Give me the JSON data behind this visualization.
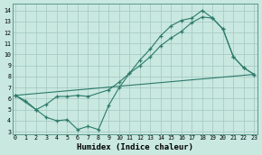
{
  "xlabel": "Humidex (Indice chaleur)",
  "bg_color": "#c8e8e0",
  "line_color": "#2d7a6a",
  "grid_color": "#a8ccc4",
  "spine_color": "#5a9a8a",
  "x_ticks": [
    0,
    1,
    2,
    3,
    4,
    5,
    6,
    7,
    8,
    9,
    10,
    11,
    12,
    13,
    14,
    15,
    16,
    17,
    18,
    19,
    20,
    21,
    22,
    23
  ],
  "y_ticks": [
    3,
    4,
    5,
    6,
    7,
    8,
    9,
    10,
    11,
    12,
    13,
    14
  ],
  "ylim": [
    2.8,
    14.6
  ],
  "xlim": [
    -0.3,
    23.3
  ],
  "series1_x": [
    0,
    1,
    2,
    3,
    4,
    5,
    6,
    7,
    8,
    9,
    10,
    11,
    12,
    13,
    14,
    15,
    16,
    17,
    18,
    19,
    20,
    21,
    22,
    23
  ],
  "series1_y": [
    6.3,
    5.8,
    5.0,
    4.3,
    4.0,
    4.1,
    3.2,
    3.5,
    3.2,
    5.4,
    7.0,
    8.3,
    9.5,
    10.5,
    11.7,
    12.6,
    13.1,
    13.3,
    14.0,
    13.3,
    12.3,
    9.8,
    8.8,
    8.2
  ],
  "series2_x": [
    0,
    2,
    3,
    4,
    5,
    6,
    7,
    9,
    10,
    11,
    12,
    13,
    14,
    15,
    16,
    17,
    18,
    19,
    20,
    21,
    22,
    23
  ],
  "series2_y": [
    6.3,
    5.0,
    5.5,
    6.2,
    6.2,
    6.3,
    6.2,
    6.8,
    7.5,
    8.3,
    9.0,
    9.8,
    10.8,
    11.5,
    12.1,
    12.9,
    13.4,
    13.3,
    12.3,
    9.8,
    8.8,
    8.2
  ],
  "series3_x": [
    0,
    23
  ],
  "series3_y": [
    6.3,
    8.2
  ]
}
